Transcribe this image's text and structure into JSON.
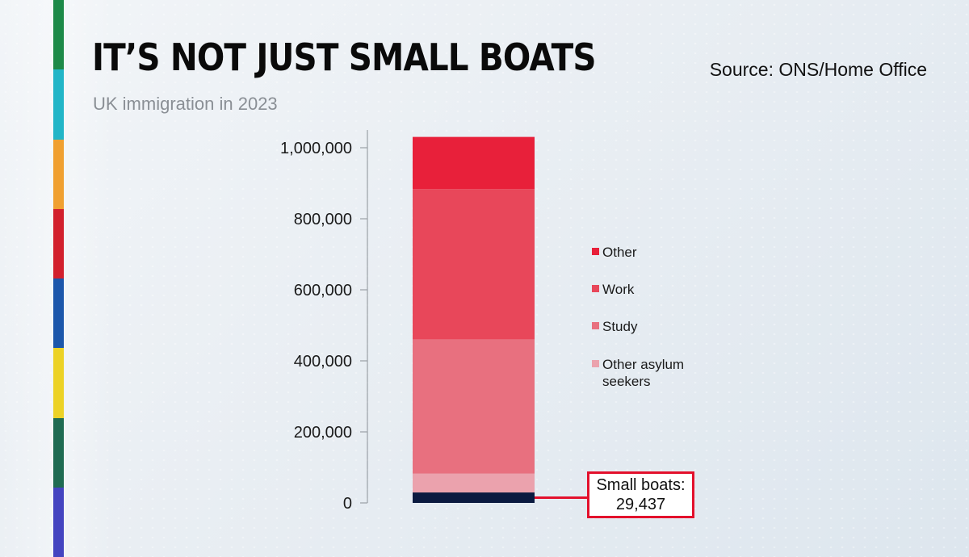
{
  "title": "IT’S NOT JUST SMALL BOATS",
  "subtitle": "UK immigration in 2023",
  "source": "Source: ONS/Home Office",
  "colors": {
    "other": "#e8203a",
    "work": "#e8475a",
    "study": "#e8707f",
    "other_asylum": "#eba2ad",
    "small_boats": "#0b1a40",
    "annotation_border": "#e3102c",
    "stripe": [
      "#1d8a48",
      "#22b5c7",
      "#f0a030",
      "#d2202d",
      "#1c57ab",
      "#ecd226",
      "#1f6b52",
      "#4444c0"
    ]
  },
  "chart_data": {
    "type": "bar",
    "stacked": true,
    "categories": [
      "UK immigration in 2023"
    ],
    "series": [
      {
        "name": "Small boats",
        "values": [
          29437
        ],
        "color": "#0b1a40"
      },
      {
        "name": "Other asylum seekers",
        "values": [
          53000
        ],
        "color": "#eba2ad"
      },
      {
        "name": "Study",
        "values": [
          378000
        ],
        "color": "#e8707f"
      },
      {
        "name": "Work",
        "values": [
          423000
        ],
        "color": "#e8475a"
      },
      {
        "name": "Other",
        "values": [
          147000
        ],
        "color": "#e8203a"
      }
    ],
    "ylim": [
      0,
      1050000
    ],
    "yticks": [
      0,
      200000,
      400000,
      600000,
      800000,
      1000000
    ],
    "ytick_labels": [
      "0",
      "200,000",
      "400,000",
      "600,000",
      "800,000",
      "1,000,000"
    ],
    "legend": [
      "Other",
      "Work",
      "Study",
      "Other asylum seekers"
    ],
    "legend_lines": [
      [
        "Other"
      ],
      [
        "Work"
      ],
      [
        "Study"
      ],
      [
        "Other asylum",
        "seekers"
      ]
    ],
    "legend_position": "right",
    "annotation": {
      "line1": "Small boats:",
      "line2": "29,437"
    }
  }
}
